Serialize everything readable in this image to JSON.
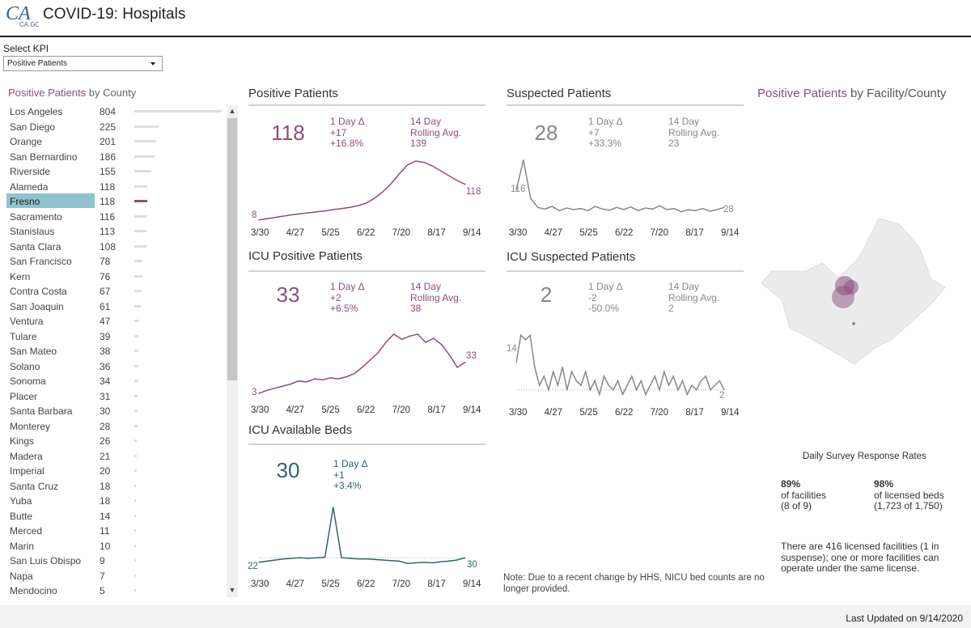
{
  "header": {
    "logo_text": "CA.GOV",
    "title": "COVID-19: Hospitals"
  },
  "kpi": {
    "label": "Select KPI",
    "selected": "Positive Patients"
  },
  "county_panel": {
    "title_metric": "Positive Patients",
    "title_suffix": " by County",
    "selected": "Fresno",
    "counties": [
      {
        "name": "Los Angeles",
        "value": "804"
      },
      {
        "name": "San Diego",
        "value": "225"
      },
      {
        "name": "Orange",
        "value": "201"
      },
      {
        "name": "San Bernardino",
        "value": "186"
      },
      {
        "name": "Riverside",
        "value": "155"
      },
      {
        "name": "Alameda",
        "value": "118"
      },
      {
        "name": "Fresno",
        "value": "118"
      },
      {
        "name": "Sacramento",
        "value": "116"
      },
      {
        "name": "Stanislaus",
        "value": "113"
      },
      {
        "name": "Santa Clara",
        "value": "108"
      },
      {
        "name": "San Francisco",
        "value": "78"
      },
      {
        "name": "Kern",
        "value": "76"
      },
      {
        "name": "Contra Costa",
        "value": "67"
      },
      {
        "name": "San Joaquin",
        "value": "61"
      },
      {
        "name": "Ventura",
        "value": "47"
      },
      {
        "name": "Tulare",
        "value": "39"
      },
      {
        "name": "San Mateo",
        "value": "38"
      },
      {
        "name": "Solano",
        "value": "36"
      },
      {
        "name": "Sonoma",
        "value": "34"
      },
      {
        "name": "Placer",
        "value": "31"
      },
      {
        "name": "Santa Barbara",
        "value": "30"
      },
      {
        "name": "Monterey",
        "value": "28"
      },
      {
        "name": "Kings",
        "value": "26"
      },
      {
        "name": "Madera",
        "value": "21"
      },
      {
        "name": "Imperial",
        "value": "20"
      },
      {
        "name": "Santa Cruz",
        "value": "18"
      },
      {
        "name": "Yuba",
        "value": "18"
      },
      {
        "name": "Butte",
        "value": "14"
      },
      {
        "name": "Merced",
        "value": "11"
      },
      {
        "name": "Marin",
        "value": "10"
      },
      {
        "name": "San Luis Obispo",
        "value": "9"
      },
      {
        "name": "Napa",
        "value": "7"
      },
      {
        "name": "Mendocino",
        "value": "5"
      }
    ]
  },
  "colors": {
    "positive": "#8a4f7d",
    "suspected": "#888888",
    "icu_beds": "#2f6670",
    "selected_row": "#8fc3d0"
  },
  "panels": {
    "positive": {
      "title": "Positive Patients",
      "big": "118",
      "delta_label": "1 Day Δ",
      "delta_abs": "+17",
      "delta_pct": "+16.8%",
      "avg_label1": "14 Day",
      "avg_label2": "Rolling Avg.",
      "avg_value": "139",
      "start_label": "8",
      "end_label": "118"
    },
    "suspected": {
      "title": "Suspected Patients",
      "big": "28",
      "delta_label": "1 Day Δ",
      "delta_abs": "+7",
      "delta_pct": "+33.3%",
      "avg_label1": "14 Day",
      "avg_label2": "Rolling Avg.",
      "avg_value": "23",
      "start_label": "116",
      "end_label": "28"
    },
    "icu_positive": {
      "title": "ICU Positive Patients",
      "big": "33",
      "delta_label": "1 Day Δ",
      "delta_abs": "+2",
      "delta_pct": "+6.5%",
      "avg_label1": "14 Day",
      "avg_label2": "Rolling Avg.",
      "avg_value": "38",
      "start_label": "3",
      "end_label": "33"
    },
    "icu_suspected": {
      "title": "ICU Suspected Patients",
      "big": "2",
      "delta_label": "1 Day Δ",
      "delta_abs": "-2",
      "delta_pct": "-50.0%",
      "avg_label1": "14 Day",
      "avg_label2": "Rolling Avg.",
      "avg_value": "2",
      "start_label": "14",
      "end_label": "2"
    },
    "icu_beds": {
      "title": "ICU Available Beds",
      "big": "30",
      "delta_label": "1 Day Δ",
      "delta_abs": "+1",
      "delta_pct": "+3.4%",
      "start_label": "22",
      "end_label": "30"
    }
  },
  "x_ticks": [
    "3/30",
    "4/27",
    "5/25",
    "6/22",
    "7/20",
    "8/17",
    "9/14"
  ],
  "chart_data": [
    {
      "type": "line",
      "title": "Positive Patients",
      "x_ticks": [
        "3/30",
        "4/27",
        "5/25",
        "6/22",
        "7/20",
        "8/17",
        "9/14"
      ],
      "values": [
        8,
        12,
        16,
        20,
        24,
        27,
        30,
        33,
        36,
        40,
        43,
        47,
        52,
        60,
        75,
        95,
        120,
        150,
        178,
        190,
        186,
        175,
        160,
        145,
        130,
        118
      ],
      "ylim": [
        0,
        200
      ]
    },
    {
      "type": "line",
      "title": "Suspected Patients",
      "x_ticks": [
        "3/30",
        "4/27",
        "5/25",
        "6/22",
        "7/20",
        "8/17",
        "9/14"
      ],
      "values": [
        60,
        116,
        45,
        28,
        25,
        30,
        22,
        27,
        24,
        26,
        22,
        30,
        25,
        23,
        28,
        24,
        29,
        22,
        27,
        25,
        31,
        24,
        26,
        20,
        24,
        22,
        26,
        21,
        24,
        28
      ],
      "ylim": [
        0,
        120
      ]
    },
    {
      "type": "line",
      "title": "ICU Positive Patients",
      "x_ticks": [
        "3/30",
        "4/27",
        "5/25",
        "6/22",
        "7/20",
        "8/17",
        "9/14"
      ],
      "values": [
        3,
        6,
        8,
        10,
        12,
        15,
        14,
        17,
        16,
        18,
        17,
        19,
        22,
        28,
        35,
        42,
        52,
        60,
        55,
        58,
        60,
        52,
        56,
        50,
        40,
        28,
        33
      ],
      "ylim": [
        0,
        70
      ]
    },
    {
      "type": "line",
      "title": "ICU Suspected Patients",
      "x_ticks": [
        "3/30",
        "4/27",
        "5/25",
        "6/22",
        "7/20",
        "8/17",
        "9/14"
      ],
      "values": [
        8,
        14,
        13,
        14,
        7,
        3,
        5,
        2,
        6,
        3,
        7,
        2,
        6,
        4,
        3,
        6,
        2,
        4,
        1,
        5,
        3,
        2,
        4,
        1,
        3,
        5,
        2,
        4,
        1,
        3,
        5,
        2,
        6,
        3,
        5,
        2,
        4,
        1,
        3,
        2,
        4,
        5,
        2,
        3,
        4,
        2
      ],
      "ylim": [
        0,
        16
      ]
    },
    {
      "type": "line",
      "title": "ICU Available Beds",
      "x_ticks": [
        "3/30",
        "4/27",
        "5/25",
        "6/22",
        "7/20",
        "8/17",
        "9/14"
      ],
      "values": [
        22,
        24,
        26,
        28,
        29,
        30,
        29,
        30,
        31,
        120,
        30,
        29,
        28,
        28,
        27,
        26,
        25,
        24,
        20,
        21,
        22,
        21,
        23,
        24,
        26,
        30
      ],
      "ylim": [
        0,
        130
      ]
    }
  ],
  "right_panel": {
    "title_metric": "Positive Patients",
    "title_suffix": " by Facility/County"
  },
  "survey": {
    "title": "Daily Survey Response Rates",
    "facilities_pct": "89%",
    "facilities_label": "of facilities",
    "facilities_count": "(8 of 9)",
    "beds_pct": "98%",
    "beds_label": "of licensed beds",
    "beds_count": "(1,723 of 1,750)",
    "licensed_note": "There are 416 licensed facilities (1 in suspense); one or more facilities can operate under the same license."
  },
  "nicu_note": "Note: Due to a recent change by HHS, NICU bed counts are no longer provided.",
  "footer": {
    "last_updated": "Last Updated on 9/14/2020"
  }
}
